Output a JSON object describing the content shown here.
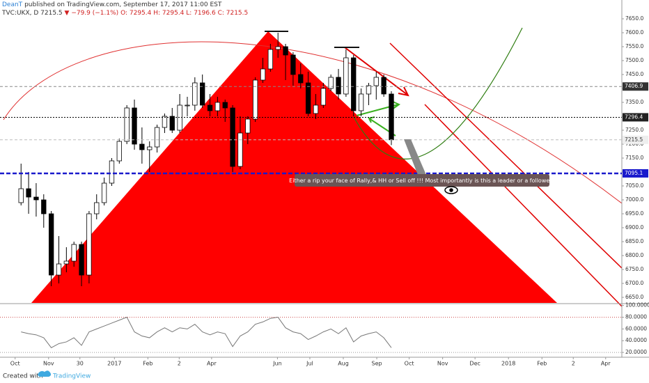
{
  "header": {
    "author": "DeanT",
    "published": "published on TradingView.com, September 17, 2017 11:00 EST",
    "symbol": "TVC:UKX, D",
    "last": "7215.5",
    "change": "▼ −79.9 (−1.1%)",
    "ohlc": [
      "O: 7295.4",
      "H: 7295.4",
      "L: 7196.6",
      "C: 7215.5"
    ]
  },
  "annotation": "Either a rip your face of Rally,& HH or Sell off !!!  Most importantly is this a leader or a follower?",
  "footer": {
    "created": "Created with",
    "brand": "TradingView"
  },
  "chart_data": [
    {
      "type": "candlestick",
      "color_up": "#ffffff",
      "color_down": "#000000",
      "x": [
        "2016-10-03",
        "2016-10-10",
        "2016-10-17",
        "2016-10-24",
        "2016-10-31",
        "2016-11-07",
        "2016-11-14",
        "2016-11-21",
        "2016-11-28",
        "2016-12-05",
        "2016-12-12",
        "2016-12-19",
        "2016-12-26",
        "2017-01-02",
        "2017-01-09",
        "2017-01-16",
        "2017-01-23",
        "2017-01-30",
        "2017-02-06",
        "2017-02-13",
        "2017-02-20",
        "2017-02-27",
        "2017-03-06",
        "2017-03-13",
        "2017-03-20",
        "2017-03-27",
        "2017-04-03",
        "2017-04-10",
        "2017-04-17",
        "2017-04-24",
        "2017-05-01",
        "2017-05-08",
        "2017-05-15",
        "2017-05-22",
        "2017-05-29",
        "2017-06-05",
        "2017-06-12",
        "2017-06-19",
        "2017-06-26",
        "2017-07-03",
        "2017-07-10",
        "2017-07-17",
        "2017-07-24",
        "2017-07-31",
        "2017-08-07",
        "2017-08-14",
        "2017-08-21",
        "2017-08-28",
        "2017-09-04",
        "2017-09-11"
      ],
      "open": [
        6990,
        7040,
        7010,
        7000,
        6950,
        6730,
        6770,
        6780,
        6840,
        6730,
        6950,
        6990,
        7060,
        7140,
        7210,
        7330,
        7200,
        7180,
        7190,
        7260,
        7300,
        7250,
        7340,
        7340,
        7420,
        7340,
        7320,
        7350,
        7330,
        7120,
        7240,
        7290,
        7430,
        7470,
        7540,
        7550,
        7520,
        7450,
        7420,
        7310,
        7340,
        7400,
        7440,
        7380,
        7510,
        7320,
        7380,
        7410,
        7440,
        7380
      ],
      "high": [
        7130,
        7100,
        7060,
        7020,
        6960,
        6870,
        6830,
        6850,
        6850,
        6960,
        7020,
        7080,
        7150,
        7220,
        7340,
        7360,
        7260,
        7210,
        7270,
        7310,
        7330,
        7380,
        7370,
        7440,
        7450,
        7380,
        7370,
        7360,
        7340,
        7300,
        7300,
        7440,
        7510,
        7560,
        7600,
        7560,
        7530,
        7490,
        7460,
        7380,
        7420,
        7450,
        7470,
        7540,
        7520,
        7400,
        7420,
        7460,
        7450,
        7390
      ],
      "low": [
        6980,
        6950,
        6940,
        6900,
        6690,
        6700,
        6740,
        6760,
        6690,
        6700,
        6930,
        6980,
        7050,
        7130,
        7200,
        7180,
        7130,
        7100,
        7170,
        7240,
        7240,
        7240,
        7300,
        7320,
        7330,
        7300,
        7300,
        7280,
        7100,
        7110,
        7200,
        7280,
        7420,
        7460,
        7510,
        7430,
        7410,
        7400,
        7300,
        7290,
        7330,
        7390,
        7360,
        7370,
        7300,
        7300,
        7340,
        7360,
        7370,
        7196.6
      ],
      "close": [
        7040,
        7010,
        7000,
        6950,
        6730,
        6770,
        6780,
        6840,
        6730,
        6950,
        6990,
        7060,
        7140,
        7210,
        7330,
        7200,
        7180,
        7190,
        7260,
        7300,
        7250,
        7340,
        7340,
        7420,
        7340,
        7320,
        7350,
        7330,
        7120,
        7240,
        7290,
        7430,
        7470,
        7540,
        7550,
        7520,
        7450,
        7420,
        7310,
        7340,
        7400,
        7440,
        7380,
        7510,
        7320,
        7380,
        7410,
        7440,
        7380,
        7215.5
      ],
      "ylim": [
        6630,
        7680
      ],
      "yticks": [
        {
          "value": 6650,
          "label": "6650.0"
        },
        {
          "value": 6700,
          "label": "6700.0"
        },
        {
          "value": 6750,
          "label": "6750.0"
        },
        {
          "value": 6800,
          "label": "6800.0"
        },
        {
          "value": 6850,
          "label": "6850.0"
        },
        {
          "value": 6900,
          "label": "6900.0"
        },
        {
          "value": 6950,
          "label": "6950.0"
        },
        {
          "value": 7000,
          "label": "7000.0"
        },
        {
          "value": 7050,
          "label": "7050.0"
        },
        {
          "value": 7100,
          "label": "7100.0"
        },
        {
          "value": 7150,
          "label": "7150.0"
        },
        {
          "value": 7200,
          "label": "7200.0"
        },
        {
          "value": 7250,
          "label": "7250.0"
        },
        {
          "value": 7300,
          "label": "7300.0"
        },
        {
          "value": 7350,
          "label": "7350.0"
        },
        {
          "value": 7400,
          "label": "7400.0"
        },
        {
          "value": 7450,
          "label": "7450.0"
        },
        {
          "value": 7500,
          "label": "7500.0"
        },
        {
          "value": 7550,
          "label": "7550.0"
        },
        {
          "value": 7600,
          "label": "7600.0"
        },
        {
          "value": 7650,
          "label": "7650.0"
        }
      ],
      "price_lines": [
        {
          "value": 7406.9,
          "color": "#888888",
          "label_bg": "#333333"
        },
        {
          "value": 7296.4,
          "color": "#000000",
          "label_bg": "#222222"
        },
        {
          "value": 7215.5,
          "color": "#bbbbbb",
          "label_bg": "#eeeeee"
        },
        {
          "value": 7095.1,
          "color": "#1a1acc",
          "label_bg": "#1a1acc"
        }
      ],
      "xlim": [
        "2016-09-17",
        "2018-04-16"
      ],
      "xticks": [
        {
          "value": "2016-10-01",
          "label": "Oct"
        },
        {
          "value": "2016-11-01",
          "label": "Nov"
        },
        {
          "value": "2016-11-30",
          "label": "30"
        },
        {
          "value": "2017-01-01",
          "label": "2017"
        },
        {
          "value": "2017-02-01",
          "label": "Feb"
        },
        {
          "value": "2017-03-02",
          "label": "2"
        },
        {
          "value": "2017-04-01",
          "label": "Apr"
        },
        {
          "value": "2017-06-01",
          "label": "Jun"
        },
        {
          "value": "2017-07-01",
          "label": "Jul"
        },
        {
          "value": "2017-08-01",
          "label": "Aug"
        },
        {
          "value": "2017-09-01",
          "label": "Sep"
        },
        {
          "value": "2017-10-01",
          "label": "Oct"
        },
        {
          "value": "2017-11-01",
          "label": "Nov"
        },
        {
          "value": "2017-12-01",
          "label": "Dec"
        },
        {
          "value": "2018-01-01",
          "label": "2018"
        },
        {
          "value": "2018-02-01",
          "label": "Feb"
        },
        {
          "value": "2018-03-02",
          "label": "2"
        },
        {
          "value": "2018-04-01",
          "label": "Apr"
        }
      ]
    },
    {
      "type": "line",
      "color": "#777777",
      "x": [
        "2016-10-03",
        "2016-10-10",
        "2016-10-17",
        "2016-10-24",
        "2016-10-31",
        "2016-11-07",
        "2016-11-14",
        "2016-11-21",
        "2016-11-28",
        "2016-12-05",
        "2016-12-12",
        "2016-12-19",
        "2016-12-26",
        "2017-01-02",
        "2017-01-09",
        "2017-01-16",
        "2017-01-23",
        "2017-01-30",
        "2017-02-06",
        "2017-02-13",
        "2017-02-20",
        "2017-02-27",
        "2017-03-06",
        "2017-03-13",
        "2017-03-20",
        "2017-03-27",
        "2017-04-03",
        "2017-04-10",
        "2017-04-17",
        "2017-04-24",
        "2017-05-01",
        "2017-05-08",
        "2017-05-15",
        "2017-05-22",
        "2017-05-29",
        "2017-06-05",
        "2017-06-12",
        "2017-06-19",
        "2017-06-26",
        "2017-07-03",
        "2017-07-10",
        "2017-07-17",
        "2017-07-24",
        "2017-07-31",
        "2017-08-07",
        "2017-08-14",
        "2017-08-21",
        "2017-08-28",
        "2017-09-04",
        "2017-09-11"
      ],
      "values": [
        55,
        52,
        50,
        45,
        28,
        35,
        38,
        45,
        32,
        55,
        60,
        65,
        70,
        75,
        80,
        55,
        48,
        45,
        55,
        62,
        55,
        62,
        60,
        68,
        55,
        50,
        55,
        52,
        30,
        48,
        55,
        68,
        72,
        78,
        80,
        62,
        55,
        52,
        42,
        48,
        55,
        60,
        52,
        62,
        38,
        48,
        52,
        55,
        45,
        28
      ],
      "ylim": [
        13,
        102
      ],
      "levels": [
        80,
        20
      ],
      "yticks": [
        {
          "value": 20,
          "label": "20.0000"
        },
        {
          "value": 40,
          "label": "40.0000"
        },
        {
          "value": 60,
          "label": "60.0000"
        },
        {
          "value": 80,
          "label": "80.0000"
        },
        {
          "value": 100,
          "label": "100.0000"
        }
      ]
    }
  ]
}
